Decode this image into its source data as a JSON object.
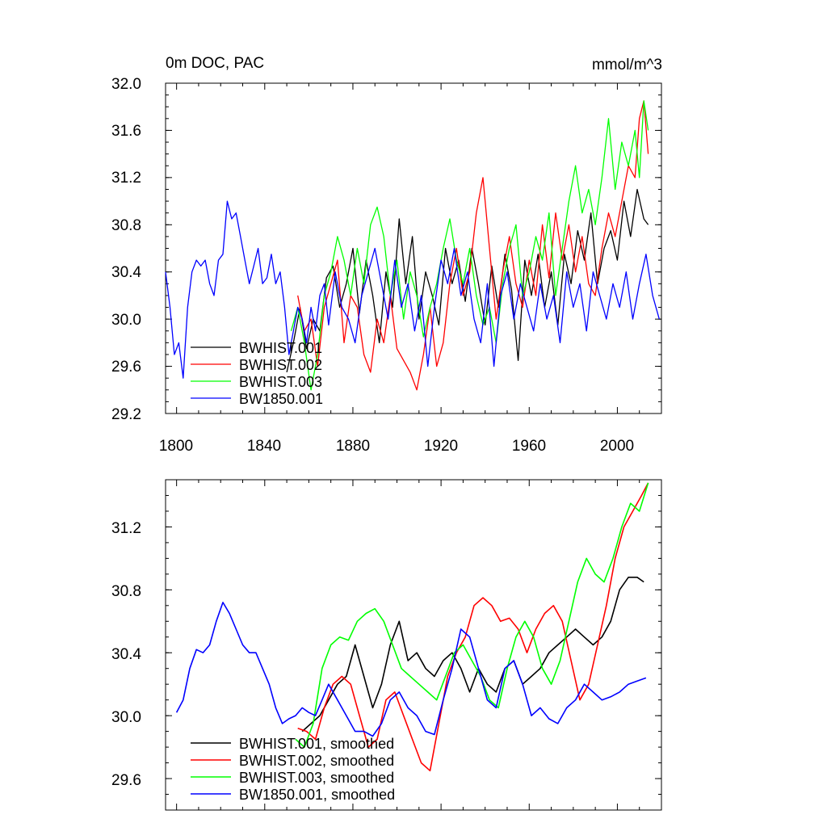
{
  "chart_data": [
    {
      "type": "line",
      "title_left": "0m DOC, PAC",
      "title_right": "mmol/m^3",
      "xlim": [
        1795,
        2020
      ],
      "ylim": [
        29.2,
        32.0
      ],
      "x_ticks": [
        1800,
        1840,
        1880,
        1920,
        1960,
        2000
      ],
      "x_tick_labels": [
        "1800",
        "1840",
        "1880",
        "1920",
        "1960",
        "2000"
      ],
      "y_ticks": [
        29.2,
        29.6,
        30.0,
        30.4,
        30.8,
        31.2,
        31.6,
        32.0
      ],
      "y_tick_labels": [
        "29.2",
        "29.6",
        "30.0",
        "30.4",
        "30.8",
        "31.2",
        "31.6",
        "32.0"
      ],
      "legend_position": "lower-left",
      "series": [
        {
          "name": "BWHIST.001",
          "color": "#000000",
          "x": [
            1850,
            1853,
            1856,
            1859,
            1862,
            1865,
            1868,
            1871,
            1874,
            1877,
            1880,
            1883,
            1886,
            1889,
            1892,
            1895,
            1898,
            1901,
            1904,
            1907,
            1910,
            1913,
            1916,
            1919,
            1922,
            1925,
            1928,
            1931,
            1934,
            1937,
            1940,
            1943,
            1946,
            1949,
            1952,
            1955,
            1958,
            1961,
            1964,
            1967,
            1970,
            1973,
            1976,
            1979,
            1982,
            1985,
            1988,
            1991,
            1994,
            1997,
            2000,
            2003,
            2006,
            2009,
            2012,
            2014
          ],
          "y": [
            29.55,
            29.8,
            30.1,
            29.75,
            30.0,
            29.9,
            30.35,
            30.45,
            30.1,
            30.3,
            30.6,
            30.05,
            30.5,
            30.2,
            29.8,
            30.4,
            30.1,
            30.85,
            30.3,
            30.7,
            30.0,
            30.4,
            30.2,
            29.95,
            30.6,
            30.3,
            30.5,
            30.15,
            30.6,
            30.3,
            29.95,
            30.45,
            30.1,
            30.55,
            30.25,
            29.65,
            30.5,
            30.2,
            30.55,
            30.1,
            30.4,
            29.95,
            30.55,
            30.3,
            30.75,
            30.5,
            30.9,
            30.3,
            30.6,
            30.75,
            30.5,
            31.0,
            30.7,
            31.1,
            30.85,
            30.8
          ]
        },
        {
          "name": "BWHIST.002",
          "color": "#ff0000",
          "x": [
            1855,
            1858,
            1861,
            1864,
            1867,
            1870,
            1873,
            1876,
            1879,
            1882,
            1885,
            1888,
            1891,
            1894,
            1897,
            1900,
            1903,
            1906,
            1909,
            1912,
            1915,
            1918,
            1921,
            1924,
            1927,
            1930,
            1933,
            1936,
            1939,
            1942,
            1945,
            1948,
            1951,
            1954,
            1957,
            1960,
            1963,
            1966,
            1969,
            1972,
            1975,
            1978,
            1981,
            1984,
            1987,
            1990,
            1993,
            1996,
            1999,
            2002,
            2005,
            2008,
            2010,
            2012,
            2014
          ],
          "y": [
            30.2,
            29.9,
            30.0,
            29.6,
            30.1,
            30.3,
            30.5,
            29.8,
            30.2,
            30.1,
            29.7,
            29.55,
            30.0,
            29.8,
            30.2,
            29.75,
            29.65,
            29.55,
            29.4,
            29.7,
            30.1,
            29.6,
            29.8,
            30.3,
            30.6,
            30.2,
            30.4,
            30.9,
            31.2,
            30.6,
            30.0,
            30.4,
            30.7,
            30.3,
            30.1,
            30.5,
            30.2,
            30.8,
            30.35,
            30.9,
            30.5,
            30.8,
            30.4,
            30.7,
            30.3,
            30.2,
            30.6,
            30.9,
            30.7,
            31.0,
            31.3,
            31.2,
            31.7,
            31.85,
            31.4
          ]
        },
        {
          "name": "BWHIST.003",
          "color": "#00ff00",
          "x": [
            1852,
            1855,
            1858,
            1861,
            1864,
            1867,
            1870,
            1873,
            1876,
            1879,
            1882,
            1885,
            1888,
            1891,
            1894,
            1897,
            1900,
            1903,
            1906,
            1909,
            1912,
            1915,
            1918,
            1921,
            1924,
            1927,
            1930,
            1933,
            1936,
            1939,
            1942,
            1945,
            1948,
            1951,
            1954,
            1957,
            1960,
            1963,
            1966,
            1969,
            1972,
            1975,
            1978,
            1981,
            1984,
            1987,
            1990,
            1993,
            1996,
            1999,
            2002,
            2005,
            2008,
            2010,
            2012,
            2014
          ],
          "y": [
            29.9,
            30.1,
            29.8,
            29.4,
            29.7,
            30.2,
            30.4,
            30.7,
            30.5,
            30.2,
            30.6,
            30.3,
            30.8,
            30.95,
            30.7,
            30.2,
            30.5,
            30.0,
            30.4,
            30.2,
            29.85,
            30.1,
            30.3,
            30.6,
            30.85,
            30.5,
            30.3,
            30.6,
            30.2,
            29.95,
            30.1,
            29.8,
            30.3,
            30.6,
            30.8,
            30.2,
            30.4,
            30.7,
            30.5,
            30.9,
            30.2,
            30.6,
            31.0,
            31.3,
            30.9,
            31.1,
            30.8,
            31.2,
            31.7,
            31.1,
            31.5,
            31.3,
            31.6,
            31.2,
            31.85,
            31.6
          ]
        },
        {
          "name": "BW1850.001",
          "color": "#0000ff",
          "x": [
            1795,
            1797,
            1799,
            1801,
            1803,
            1805,
            1807,
            1809,
            1811,
            1813,
            1815,
            1817,
            1819,
            1821,
            1823,
            1825,
            1827,
            1829,
            1831,
            1833,
            1835,
            1837,
            1839,
            1841,
            1843,
            1845,
            1847,
            1849,
            1851,
            1853,
            1855,
            1857,
            1859,
            1861,
            1863,
            1865,
            1867,
            1869,
            1872,
            1875,
            1878,
            1881,
            1884,
            1887,
            1890,
            1893,
            1896,
            1899,
            1902,
            1905,
            1908,
            1911,
            1914,
            1917,
            1920,
            1923,
            1926,
            1929,
            1932,
            1935,
            1938,
            1941,
            1944,
            1947,
            1950,
            1953,
            1956,
            1959,
            1962,
            1965,
            1968,
            1971,
            1974,
            1977,
            1980,
            1983,
            1986,
            1989,
            1992,
            1995,
            1998,
            2001,
            2004,
            2007,
            2010,
            2013,
            2016,
            2019
          ],
          "y": [
            30.4,
            30.1,
            29.7,
            29.8,
            29.5,
            30.1,
            30.4,
            30.5,
            30.45,
            30.5,
            30.3,
            30.2,
            30.5,
            30.55,
            31.0,
            30.85,
            30.9,
            30.7,
            30.5,
            30.3,
            30.45,
            30.6,
            30.3,
            30.35,
            30.55,
            30.3,
            30.4,
            30.1,
            29.7,
            29.9,
            30.1,
            30.0,
            29.8,
            30.1,
            29.9,
            30.2,
            30.3,
            29.95,
            30.4,
            30.1,
            30.0,
            29.8,
            30.2,
            30.4,
            30.6,
            30.3,
            30.0,
            30.5,
            30.1,
            30.3,
            29.9,
            30.2,
            29.6,
            30.1,
            30.5,
            30.3,
            30.6,
            30.2,
            30.4,
            30.0,
            29.8,
            30.3,
            29.6,
            30.2,
            30.4,
            30.0,
            30.3,
            30.1,
            29.9,
            30.3,
            30.0,
            30.2,
            29.8,
            30.4,
            30.1,
            30.3,
            29.9,
            30.4,
            30.2,
            30.0,
            30.3,
            30.1,
            30.4,
            30.0,
            30.3,
            30.55,
            30.2,
            30.0
          ]
        }
      ]
    },
    {
      "type": "line",
      "xlim": [
        1795,
        2020
      ],
      "ylim": [
        29.4,
        31.5
      ],
      "x_ticks": [
        1800,
        1840,
        1880,
        1920,
        1960,
        2000
      ],
      "y_ticks": [
        29.6,
        30.0,
        30.4,
        30.8,
        31.2
      ],
      "y_tick_labels": [
        "29.6",
        "30.0",
        "30.4",
        "30.8",
        "31.2"
      ],
      "legend_position": "lower-left",
      "series": [
        {
          "name": "BWHIST.001, smoothed",
          "color": "#000000",
          "x": [
            1857,
            1861,
            1865,
            1869,
            1873,
            1877,
            1881,
            1885,
            1889,
            1893,
            1897,
            1901,
            1905,
            1909,
            1913,
            1917,
            1921,
            1925,
            1929,
            1933,
            1937,
            1941,
            1945,
            1949,
            1953,
            1957,
            1961,
            1965,
            1969,
            1973,
            1977,
            1981,
            1985,
            1989,
            1993,
            1997,
            2001,
            2005,
            2009,
            2012
          ],
          "y": [
            29.9,
            29.95,
            30.0,
            30.1,
            30.2,
            30.25,
            30.45,
            30.25,
            30.05,
            30.2,
            30.45,
            30.6,
            30.35,
            30.4,
            30.3,
            30.25,
            30.35,
            30.4,
            30.3,
            30.15,
            30.3,
            30.2,
            30.15,
            30.3,
            30.35,
            30.2,
            30.25,
            30.3,
            30.4,
            30.45,
            30.5,
            30.55,
            30.5,
            30.45,
            30.5,
            30.6,
            30.8,
            30.88,
            30.88,
            30.85
          ]
        },
        {
          "name": "BWHIST.002, smoothed",
          "color": "#ff0000",
          "x": [
            1855,
            1859,
            1863,
            1867,
            1871,
            1875,
            1879,
            1883,
            1887,
            1891,
            1895,
            1899,
            1903,
            1907,
            1911,
            1915,
            1919,
            1923,
            1927,
            1931,
            1935,
            1939,
            1943,
            1947,
            1951,
            1955,
            1959,
            1963,
            1967,
            1971,
            1975,
            1979,
            1983,
            1987,
            1991,
            1995,
            1999,
            2003,
            2007,
            2011,
            2014
          ],
          "y": [
            29.92,
            29.9,
            29.85,
            30.05,
            30.2,
            30.25,
            30.2,
            30.0,
            29.8,
            29.85,
            30.1,
            30.15,
            30.0,
            29.85,
            29.7,
            29.65,
            29.95,
            30.25,
            30.4,
            30.5,
            30.7,
            30.75,
            30.7,
            30.6,
            30.62,
            30.55,
            30.4,
            30.55,
            30.65,
            30.7,
            30.6,
            30.35,
            30.1,
            30.2,
            30.45,
            30.7,
            31.0,
            31.2,
            31.3,
            31.4,
            31.48
          ]
        },
        {
          "name": "BWHIST.003, smoothed",
          "color": "#00ff00",
          "x": [
            1854,
            1858,
            1862,
            1866,
            1870,
            1874,
            1878,
            1882,
            1886,
            1890,
            1894,
            1898,
            1902,
            1906,
            1910,
            1914,
            1918,
            1922,
            1926,
            1930,
            1934,
            1938,
            1942,
            1946,
            1950,
            1954,
            1958,
            1962,
            1966,
            1970,
            1974,
            1978,
            1982,
            1986,
            1990,
            1994,
            1998,
            2002,
            2006,
            2010,
            2014
          ],
          "y": [
            29.85,
            29.8,
            29.95,
            30.3,
            30.45,
            30.5,
            30.48,
            30.6,
            30.65,
            30.68,
            30.6,
            30.45,
            30.3,
            30.25,
            30.2,
            30.15,
            30.1,
            30.25,
            30.4,
            30.45,
            30.35,
            30.25,
            30.1,
            30.05,
            30.3,
            30.5,
            30.6,
            30.5,
            30.3,
            30.2,
            30.35,
            30.6,
            30.85,
            31.0,
            30.9,
            30.85,
            31.0,
            31.2,
            31.35,
            31.3,
            31.48
          ]
        },
        {
          "name": "BW1850.001, smoothed",
          "color": "#0000ff",
          "x": [
            1800,
            1803,
            1806,
            1809,
            1812,
            1815,
            1818,
            1821,
            1824,
            1827,
            1830,
            1833,
            1836,
            1839,
            1842,
            1845,
            1848,
            1851,
            1854,
            1857,
            1860,
            1863,
            1866,
            1869,
            1873,
            1877,
            1881,
            1885,
            1889,
            1893,
            1897,
            1901,
            1905,
            1909,
            1913,
            1917,
            1921,
            1925,
            1929,
            1933,
            1937,
            1941,
            1945,
            1949,
            1953,
            1957,
            1961,
            1965,
            1969,
            1973,
            1977,
            1981,
            1985,
            1989,
            1993,
            1997,
            2001,
            2005,
            2009,
            2013
          ],
          "y": [
            30.02,
            30.1,
            30.3,
            30.42,
            30.4,
            30.45,
            30.6,
            30.72,
            30.65,
            30.55,
            30.45,
            30.4,
            30.4,
            30.3,
            30.2,
            30.05,
            29.95,
            29.98,
            30.0,
            30.05,
            30.02,
            30.0,
            30.1,
            30.2,
            30.1,
            30.0,
            29.9,
            29.9,
            29.87,
            29.95,
            30.1,
            30.15,
            30.05,
            30.0,
            29.9,
            29.88,
            30.1,
            30.3,
            30.55,
            30.5,
            30.3,
            30.1,
            30.05,
            30.3,
            30.35,
            30.2,
            30.0,
            30.05,
            29.98,
            29.95,
            30.05,
            30.1,
            30.2,
            30.15,
            30.1,
            30.12,
            30.15,
            30.2,
            30.22,
            30.24
          ]
        }
      ]
    }
  ]
}
